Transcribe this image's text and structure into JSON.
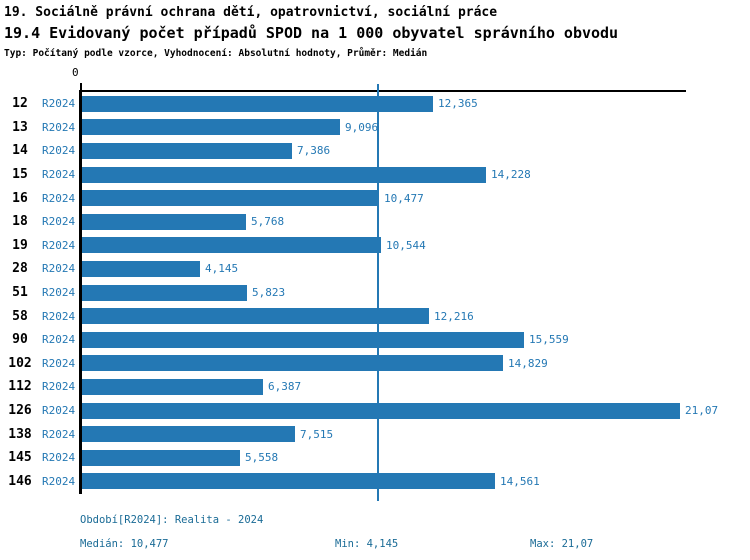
{
  "header": {
    "title": "19. Sociálně právní ochrana dětí, opatrovnictví, sociální práce",
    "subtitle": "19.4 Evidovaný počet případů SPOD na 1 000 obyvatel správního obvodu",
    "meta": "Typ: Počítaný podle vzorce, Vyhodnocení: Absolutní hodnoty, Průměr: Medián"
  },
  "chart_data": {
    "type": "bar",
    "orientation": "horizontal",
    "title": "19.4 Evidovaný počet případů SPOD na 1 000 obyvatel správního obvodu",
    "categories": [
      "12",
      "13",
      "14",
      "15",
      "16",
      "18",
      "19",
      "28",
      "51",
      "58",
      "90",
      "102",
      "112",
      "126",
      "138",
      "145",
      "146"
    ],
    "period_label": "R2024",
    "series": [
      {
        "name": "R2024",
        "values": [
          12.365,
          9.096,
          7.386,
          14.228,
          10.477,
          5.768,
          10.544,
          4.145,
          5.823,
          12.216,
          15.559,
          14.829,
          6.387,
          21.07,
          7.515,
          5.558,
          14.561
        ],
        "value_labels": [
          "12,365",
          "9,096",
          "7,386",
          "14,228",
          "10,477",
          "5,768",
          "10,544",
          "4,145",
          "5,823",
          "12,216",
          "15,559",
          "14,829",
          "6,387",
          "21,07",
          "7,515",
          "5,558",
          "14,561"
        ]
      }
    ],
    "x_axis": {
      "min": 0,
      "max": 21.31,
      "tick_labels": [
        "0"
      ],
      "tick_values": [
        0
      ]
    },
    "median_value": 10.477,
    "grid": false,
    "legend": false,
    "colors": {
      "bar": "#2478b4",
      "median_line": "#2478b4",
      "value_text": "#2478b4",
      "period_text": "#2478b4",
      "axis": "#000000",
      "footer_text": "#1a6b96"
    }
  },
  "footer": {
    "period": "Období[R2024]: Realita - 2024",
    "median": "Medián: 10,477",
    "min": "Min: 4,145",
    "max": "Max: 21,07"
  }
}
